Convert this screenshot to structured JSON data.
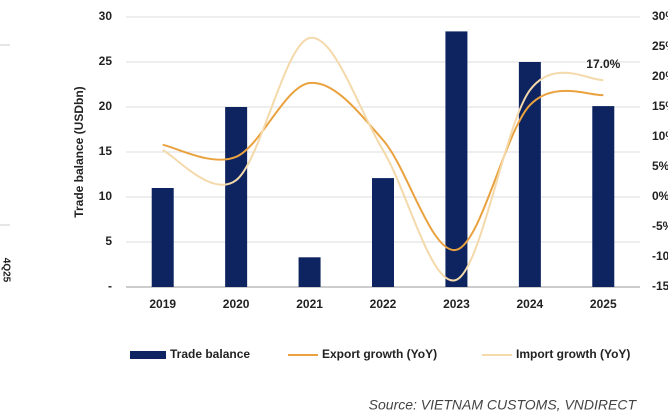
{
  "chart_data": {
    "type": "bar_line",
    "ylabel": "Trade balance (USDbn)",
    "categories": [
      "2019",
      "2020",
      "2021",
      "2022",
      "2023",
      "2024",
      "2025"
    ],
    "series": [
      {
        "name": "Trade balance",
        "type": "bar",
        "color": "#0d2461",
        "values": [
          11,
          20,
          3.3,
          12.1,
          28.4,
          25,
          20.1
        ]
      },
      {
        "name": "Export growth (YoY)",
        "type": "line",
        "axis": "y2",
        "color": "#e9a23f",
        "values": [
          8.7,
          6.7,
          19,
          9.5,
          -8.8,
          15.3,
          17.0
        ],
        "value_labels": [
          null,
          null,
          null,
          null,
          null,
          null,
          "17.0%"
        ]
      },
      {
        "name": "Import growth (YoY)",
        "type": "line",
        "axis": "y2",
        "color": "#f4d9ab",
        "values": [
          7.8,
          2.8,
          26.5,
          7.8,
          -13.8,
          17.8,
          19.5
        ]
      }
    ],
    "ylim": [
      0,
      30
    ],
    "yticks": [
      {
        "value": 0,
        "label": "-"
      },
      5,
      10,
      15,
      20,
      25,
      30
    ],
    "y2lim": [
      -15,
      30
    ],
    "y2ticks": [
      {
        "value": -15,
        "label": "-15%"
      },
      {
        "value": -10,
        "label": "-10%"
      },
      {
        "value": -5,
        "label": "-5%"
      },
      {
        "value": 0,
        "label": "0%"
      },
      {
        "value": 5,
        "label": "5%"
      },
      {
        "value": 10,
        "label": "10%"
      },
      {
        "value": 15,
        "label": "15%"
      },
      {
        "value": 20,
        "label": "20%"
      },
      {
        "value": 25,
        "label": "25%"
      },
      {
        "value": 30,
        "label": "30%"
      }
    ],
    "grid": true,
    "legend": "bottom",
    "source": "Source: VIETNAM CUSTOMS, VNDIRECT",
    "fragment": "4Q25"
  }
}
